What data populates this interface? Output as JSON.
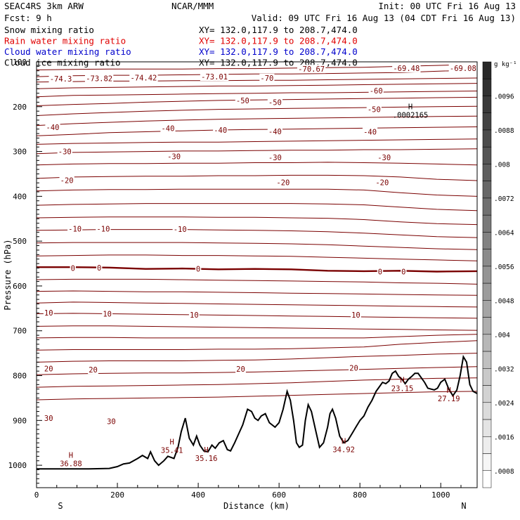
{
  "header": {
    "model": "SEAC4RS  3km ARW",
    "center": "NCAR/MMM",
    "init": "Init: 00 UTC Fri 16 Aug 13",
    "fcst": "Fcst:   9 h",
    "valid": "Valid: 09 UTC Fri 16 Aug 13 (04 CDT Fri 16 Aug 13)",
    "fields": [
      {
        "name": "Snow mixing ratio",
        "xy": "XY= 132.0,117.9 to 208.7,474.0",
        "color": "#000000"
      },
      {
        "name": "Rain water mixing ratio",
        "xy": "XY= 132.0,117.9 to 208.7,474.0",
        "color": "#e00000"
      },
      {
        "name": "Cloud water mixing ratio",
        "xy": "XY= 132.0,117.9 to 208.7,474.0",
        "color": "#0000cc"
      },
      {
        "name": "Cloud ice mixing ratio",
        "xy": "XY= 132.0,117.9 to 208.7,474.0",
        "color": "#000000"
      }
    ]
  },
  "chart_data": {
    "type": "line",
    "xlabel": "Distance (km)",
    "ylabel": "Pressure (hPa)",
    "x_range": [
      0,
      1090
    ],
    "y_range": [
      1050,
      100
    ],
    "x_ticks": [
      0,
      200,
      400,
      600,
      800,
      1000
    ],
    "y_ticks": [
      200,
      300,
      400,
      500,
      600,
      700,
      800,
      900,
      1000
    ],
    "x_end_labels": {
      "left": "S",
      "right": "N"
    },
    "colorbar": {
      "unit": "g kg⁻¹",
      "labels": [
        ".0096",
        ".0088",
        ".008",
        ".0072",
        ".0064",
        ".0056",
        ".0048",
        ".004",
        ".0032",
        ".0024",
        ".0016",
        ".0008"
      ]
    },
    "contour_color": "#7a0000",
    "freezing_line": {
      "value": 0,
      "pressure": [
        558,
        558,
        559,
        562,
        561,
        563,
        562,
        563,
        566,
        567,
        566,
        568,
        567
      ]
    },
    "contours": [
      {
        "p": [
          118,
          117,
          116,
          116,
          116,
          115,
          115,
          114,
          113,
          112,
          110,
          108,
          106
        ]
      },
      {
        "p": [
          133,
          131,
          130,
          130,
          129,
          128,
          127,
          127,
          126,
          125,
          124,
          121,
          118
        ]
      },
      {
        "p": [
          145,
          144,
          143,
          143,
          142,
          142,
          141,
          141,
          140,
          139,
          138,
          137,
          136
        ]
      },
      {
        "p": [
          160,
          158,
          157,
          156,
          155,
          154,
          154,
          153,
          152,
          151,
          150,
          149,
          148
        ]
      },
      {
        "p": [
          178,
          175,
          174,
          173,
          172,
          171,
          170,
          169,
          169,
          168,
          167,
          166,
          165
        ]
      },
      {
        "p": [
          198,
          195,
          193,
          190,
          188,
          186,
          185,
          184,
          183,
          182,
          181,
          180,
          179
        ]
      },
      {
        "p": [
          220,
          216,
          213,
          210,
          208,
          206,
          205,
          204,
          203,
          202,
          201,
          200,
          199
        ]
      },
      {
        "p": [
          242,
          238,
          235,
          232,
          230,
          228,
          227,
          226,
          225,
          224,
          223,
          222,
          221
        ]
      },
      {
        "p": [
          265,
          262,
          258,
          256,
          254,
          252,
          251,
          250,
          249,
          248,
          247,
          246,
          245
        ]
      },
      {
        "p": [
          284,
          282,
          281,
          280,
          279,
          279,
          278,
          277,
          276,
          275,
          274,
          273,
          272
        ]
      },
      {
        "p": [
          305,
          302,
          301,
          300,
          299,
          299,
          298,
          297,
          297,
          296,
          296,
          295,
          294
        ]
      },
      {
        "p": [
          330,
          328,
          327,
          327,
          326,
          326,
          325,
          325,
          324,
          325,
          326,
          328,
          330
        ]
      },
      {
        "p": [
          360,
          357,
          356,
          355,
          355,
          354,
          354,
          353,
          353,
          354,
          357,
          362,
          365
        ]
      },
      {
        "p": [
          388,
          386,
          385,
          385,
          384,
          384,
          384,
          384,
          384,
          386,
          392,
          397,
          400
        ]
      },
      {
        "p": [
          420,
          418,
          417,
          416,
          416,
          416,
          416,
          416,
          417,
          419,
          424,
          429,
          432
        ]
      },
      {
        "p": [
          448,
          447,
          446,
          446,
          446,
          447,
          447,
          448,
          449,
          452,
          457,
          461,
          463
        ]
      },
      {
        "p": [
          476,
          475,
          474,
          474,
          474,
          475,
          476,
          477,
          479,
          482,
          486,
          490,
          492
        ]
      },
      {
        "p": [
          504,
          503,
          503,
          503,
          503,
          504,
          505,
          506,
          508,
          511,
          514,
          517,
          519
        ]
      },
      {
        "p": [
          533,
          532,
          531,
          531,
          532,
          532,
          533,
          534,
          536,
          538,
          540,
          542,
          544
        ]
      },
      {
        "p": [
          586,
          585,
          585,
          585,
          586,
          587,
          588,
          589,
          590,
          591,
          593,
          594,
          596
        ]
      },
      {
        "p": [
          612,
          611,
          612,
          613,
          613,
          614,
          615,
          616,
          617,
          618,
          619,
          620,
          621
        ]
      },
      {
        "p": [
          638,
          636,
          637,
          638,
          639,
          640,
          641,
          642,
          643,
          644,
          645,
          646,
          647
        ]
      },
      {
        "p": [
          662,
          661,
          662,
          663,
          664,
          665,
          666,
          667,
          668,
          669,
          670,
          671,
          672
        ]
      },
      {
        "p": [
          690,
          689,
          689,
          690,
          691,
          692,
          693,
          694,
          695,
          696,
          697,
          698,
          699
        ]
      },
      {
        "p": [
          716,
          715,
          715,
          716,
          716,
          716,
          716,
          716,
          716,
          716,
          713,
          710,
          708
        ]
      },
      {
        "p": [
          743,
          742,
          742,
          742,
          742,
          741,
          741,
          740,
          738,
          736,
          730,
          726,
          722
        ]
      },
      {
        "p": [
          770,
          768,
          767,
          767,
          767,
          766,
          765,
          763,
          760,
          757,
          755,
          752,
          750
        ]
      },
      {
        "p": [
          798,
          796,
          795,
          794,
          794,
          793,
          792,
          790,
          788,
          786,
          784,
          782,
          780
        ]
      },
      {
        "p": [
          826,
          824,
          823,
          822,
          821,
          820,
          818,
          816,
          813,
          810,
          808,
          806,
          805
        ]
      },
      {
        "p": [
          854,
          852,
          851,
          850,
          849,
          848,
          846,
          844,
          842,
          840,
          838,
          836,
          835
        ]
      }
    ],
    "contour_x": [
      0,
      90,
      180,
      270,
      360,
      450,
      540,
      630,
      720,
      810,
      900,
      990,
      1090
    ],
    "contour_labels": [
      {
        "text": "-74.3",
        "x": 60,
        "p": 138
      },
      {
        "text": "-73.82",
        "x": 155,
        "p": 137
      },
      {
        "text": "-74.42",
        "x": 265,
        "p": 135
      },
      {
        "text": "-73.01",
        "x": 440,
        "p": 133
      },
      {
        "text": "-70",
        "x": 570,
        "p": 136
      },
      {
        "text": "-70.67",
        "x": 680,
        "p": 116
      },
      {
        "text": "-69.48",
        "x": 915,
        "p": 114
      },
      {
        "text": "-69.08",
        "x": 1055,
        "p": 114
      },
      {
        "text": "-60",
        "x": 840,
        "p": 164
      },
      {
        "text": "-50",
        "x": 510,
        "p": 186
      },
      {
        "text": "-50",
        "x": 590,
        "p": 190
      },
      {
        "text": "-50",
        "x": 835,
        "p": 206
      },
      {
        "text": "-40",
        "x": 40,
        "p": 246
      },
      {
        "text": "-40",
        "x": 325,
        "p": 248
      },
      {
        "text": "-40",
        "x": 455,
        "p": 252
      },
      {
        "text": "-40",
        "x": 590,
        "p": 255
      },
      {
        "text": "-40",
        "x": 825,
        "p": 256
      },
      {
        "text": "-30",
        "x": 70,
        "p": 300
      },
      {
        "text": "-30",
        "x": 340,
        "p": 311
      },
      {
        "text": "-30",
        "x": 590,
        "p": 313
      },
      {
        "text": "-30",
        "x": 860,
        "p": 313
      },
      {
        "text": "-20",
        "x": 75,
        "p": 364
      },
      {
        "text": "-20",
        "x": 610,
        "p": 369
      },
      {
        "text": "-20",
        "x": 855,
        "p": 369
      },
      {
        "text": "-10",
        "x": 95,
        "p": 472
      },
      {
        "text": "-10",
        "x": 165,
        "p": 472
      },
      {
        "text": "-10",
        "x": 355,
        "p": 473
      },
      {
        "text": "0",
        "x": 90,
        "p": 560
      },
      {
        "text": "0",
        "x": 155,
        "p": 559
      },
      {
        "text": "0",
        "x": 400,
        "p": 562
      },
      {
        "text": "0",
        "x": 850,
        "p": 568
      },
      {
        "text": "0",
        "x": 908,
        "p": 568
      },
      {
        "text": "10",
        "x": 30,
        "p": 660
      },
      {
        "text": "10",
        "x": 175,
        "p": 662
      },
      {
        "text": "10",
        "x": 390,
        "p": 664
      },
      {
        "text": "10",
        "x": 790,
        "p": 664
      },
      {
        "text": "20",
        "x": 30,
        "p": 784
      },
      {
        "text": "20",
        "x": 140,
        "p": 787
      },
      {
        "text": "20",
        "x": 505,
        "p": 785
      },
      {
        "text": "20",
        "x": 785,
        "p": 783
      },
      {
        "text": "30",
        "x": 30,
        "p": 895
      },
      {
        "text": "30",
        "x": 185,
        "p": 902
      }
    ],
    "highs": [
      {
        "value": "36.88",
        "x": 85,
        "p": 990
      },
      {
        "value": "35.41",
        "x": 335,
        "p": 960
      },
      {
        "value": "35.16",
        "x": 420,
        "p": 978
      },
      {
        "value": "34.92",
        "x": 760,
        "p": 958
      },
      {
        "value": "23.15",
        "x": 905,
        "p": 822
      },
      {
        "value": "27.19",
        "x": 1020,
        "p": 845
      },
      {
        "value": ".0002165",
        "x": 925,
        "p": 212
      }
    ],
    "terrain": {
      "x": [
        0,
        60,
        130,
        180,
        200,
        215,
        230,
        250,
        262,
        275,
        282,
        292,
        302,
        315,
        325,
        340,
        350,
        358,
        368,
        378,
        388,
        396,
        404,
        414,
        424,
        434,
        442,
        452,
        462,
        472,
        480,
        490,
        500,
        510,
        522,
        532,
        540,
        548,
        556,
        566,
        576,
        590,
        600,
        610,
        620,
        628,
        636,
        643,
        650,
        658,
        665,
        672,
        680,
        690,
        700,
        710,
        720,
        726,
        732,
        740,
        750,
        760,
        770,
        780,
        790,
        800,
        810,
        820,
        830,
        840,
        848,
        856,
        864,
        872,
        880,
        888,
        896,
        904,
        912,
        920,
        928,
        936,
        944,
        952,
        960,
        968,
        976,
        984,
        992,
        1000,
        1010,
        1020,
        1030,
        1040,
        1048,
        1056,
        1064,
        1072,
        1080,
        1090
      ],
      "p": [
        1008,
        1008,
        1008,
        1007,
        1003,
        997,
        995,
        985,
        978,
        985,
        970,
        990,
        1000,
        990,
        980,
        985,
        960,
        925,
        895,
        940,
        955,
        935,
        955,
        968,
        970,
        955,
        962,
        950,
        945,
        965,
        968,
        950,
        930,
        910,
        875,
        880,
        895,
        900,
        890,
        885,
        905,
        915,
        905,
        875,
        835,
        855,
        900,
        950,
        960,
        955,
        900,
        865,
        880,
        920,
        960,
        950,
        915,
        885,
        875,
        895,
        935,
        950,
        945,
        930,
        915,
        900,
        890,
        870,
        855,
        835,
        825,
        815,
        818,
        812,
        795,
        790,
        802,
        808,
        818,
        808,
        802,
        795,
        795,
        805,
        815,
        828,
        830,
        832,
        828,
        815,
        808,
        830,
        845,
        832,
        800,
        758,
        770,
        820,
        835,
        840
      ]
    }
  }
}
